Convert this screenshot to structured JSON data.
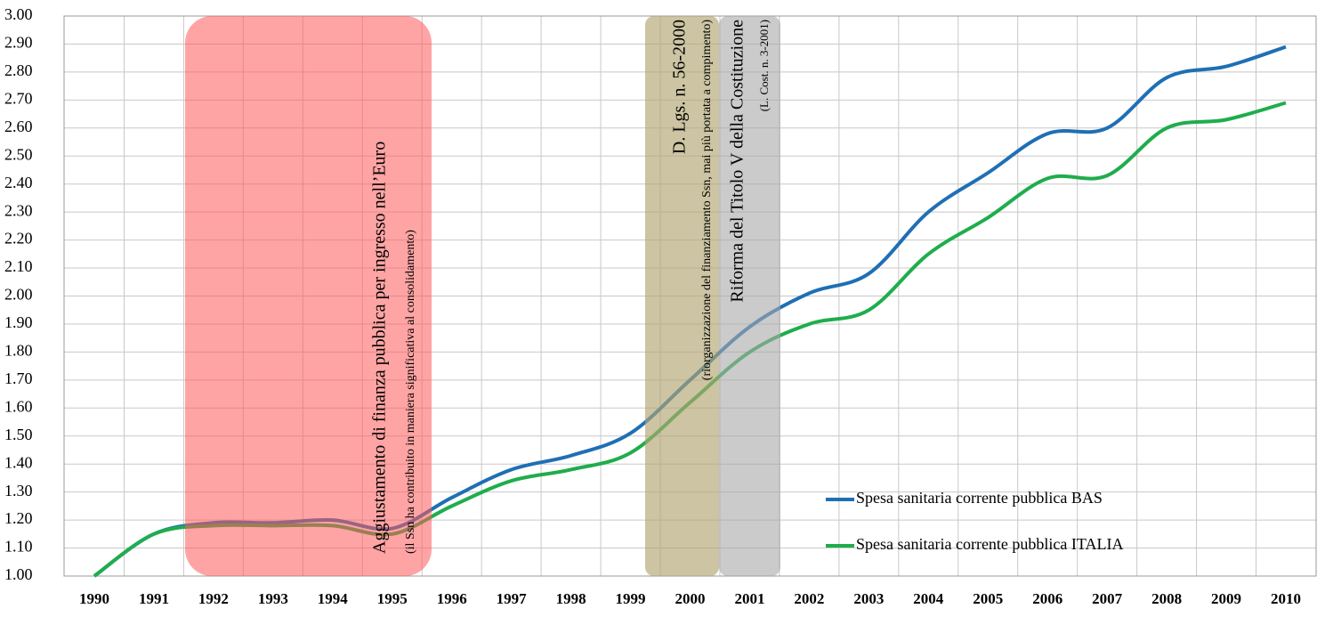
{
  "chart_data": {
    "type": "line",
    "categories": [
      "1990",
      "1991",
      "1992",
      "1993",
      "1994",
      "1995",
      "1996",
      "1997",
      "1998",
      "1999",
      "2000",
      "2001",
      "2002",
      "2003",
      "2004",
      "2005",
      "2006",
      "2007",
      "2008",
      "2009",
      "2010"
    ],
    "series": [
      {
        "name": "Spesa sanitaria corrente pubblica BAS",
        "color": "#1f6fb4",
        "values": [
          1.0,
          1.15,
          1.19,
          1.19,
          1.2,
          1.17,
          1.28,
          1.38,
          1.43,
          1.51,
          1.7,
          1.89,
          2.01,
          2.08,
          2.3,
          2.44,
          2.58,
          2.6,
          2.78,
          2.82,
          2.89
        ]
      },
      {
        "name": "Spesa sanitaria corrente pubblica ITALIA",
        "color": "#1fad4c",
        "values": [
          1.0,
          1.15,
          1.18,
          1.18,
          1.18,
          1.15,
          1.25,
          1.34,
          1.38,
          1.44,
          1.62,
          1.8,
          1.9,
          1.95,
          2.15,
          2.28,
          2.42,
          2.43,
          2.6,
          2.63,
          2.69
        ]
      }
    ],
    "ylim": [
      1.0,
      3.0
    ],
    "yticks": [
      {
        "value": 1.0,
        "label": "1.00"
      },
      {
        "value": 1.1,
        "label": "1.10"
      },
      {
        "value": 1.2,
        "label": "1.20"
      },
      {
        "value": 1.3,
        "label": "1.30"
      },
      {
        "value": 1.4,
        "label": "1.40"
      },
      {
        "value": 1.5,
        "label": "1.50"
      },
      {
        "value": 1.6,
        "label": "1.60"
      },
      {
        "value": 1.7,
        "label": "1.70"
      },
      {
        "value": 1.8,
        "label": "1.80"
      },
      {
        "value": 1.9,
        "label": "1.90"
      },
      {
        "value": 2.0,
        "label": "2.00"
      },
      {
        "value": 2.1,
        "label": "2.10"
      },
      {
        "value": 2.2,
        "label": "2.20"
      },
      {
        "value": 2.3,
        "label": "2.30"
      },
      {
        "value": 2.4,
        "label": "2.40"
      },
      {
        "value": 2.5,
        "label": "2.50"
      },
      {
        "value": 2.6,
        "label": "2.60"
      },
      {
        "value": 2.7,
        "label": "2.70"
      },
      {
        "value": 2.8,
        "label": "2.80"
      },
      {
        "value": 2.9,
        "label": "2.90"
      },
      {
        "value": 3.0,
        "label": "3.00"
      }
    ],
    "grid": true,
    "legend": "lower right",
    "annotations": [
      {
        "text": "Aggiustamento di finanza pubblica per ingresso nell’Euro",
        "subtext": "(il Ssn ha contribuito in maniera significativa al consolidamento)"
      },
      {
        "text": "D. Lgs. n. 56-2000",
        "subtext": "(riorganizzazione del finanziamento Ssn, mai più portata a compimento)"
      },
      {
        "text": "Riforma del Titolo V della Costituzione",
        "subtext": "(L. Cost. n. 3-2001)"
      }
    ]
  }
}
